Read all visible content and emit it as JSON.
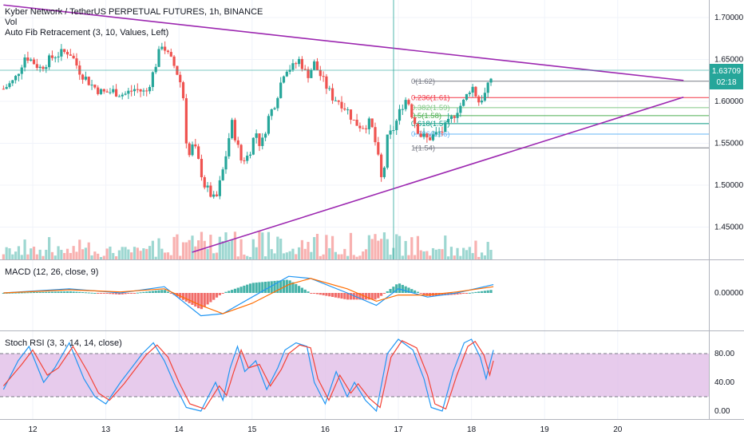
{
  "header": {
    "symbol_line": "Kyber Network / TetherUS PERPETUAL FUTURES, 1h, BINANCE",
    "volume_label": "Vol",
    "fib_label": "Auto Fib Retracement (3, 10, Values, Left)"
  },
  "macd_pane": {
    "label": "MACD (12, 26, close, 9)"
  },
  "rsi_pane": {
    "label": "Stoch RSI (3, 3, 14, 14, close)"
  },
  "price_axis": {
    "ticks": [
      "1.70000",
      "1.65000",
      "1.60000",
      "1.55000",
      "1.50000",
      "1.45000"
    ],
    "last_price": "1.63709",
    "countdown": "02:18"
  },
  "macd_axis": {
    "ticks": [
      "0.00000"
    ]
  },
  "rsi_axis": {
    "ticks": [
      "80.00",
      "40.00",
      "0.00"
    ]
  },
  "time_axis": {
    "ticks": [
      "12",
      "13",
      "14",
      "15",
      "16",
      "17",
      "18",
      "19",
      "20"
    ]
  },
  "fib_levels": [
    {
      "label": "0(1.62)",
      "price": 1.624,
      "color": "#787b86"
    },
    {
      "label": "0.236(1.61)",
      "price": 1.6045,
      "color": "#f23645"
    },
    {
      "label": "0.382(1.59)",
      "price": 1.5925,
      "color": "#81c784"
    },
    {
      "label": "0.5(1.58)",
      "price": 1.583,
      "color": "#4caf50"
    },
    {
      "label": "0.618(1.57)",
      "price": 1.5735,
      "color": "#089981"
    },
    {
      "label": "0.786(1.56)",
      "price": 1.561,
      "color": "#64b5f6"
    },
    {
      "label": "1(1.54)",
      "price": 1.5445,
      "color": "#787b86"
    }
  ],
  "colors": {
    "up": "#26a69a",
    "down": "#ef5350",
    "trendline": "#9c27b0",
    "macd_line": "#2196f3",
    "signal_line": "#ff6d00",
    "rsi_k": "#2196f3",
    "rsi_d": "#f44336",
    "rsi_band": "#e1bee7",
    "last_price_tag": "#26a69a"
  },
  "chart_data": [
    {
      "type": "candlestick",
      "title": "Kyber Network / TetherUS PERPETUAL FUTURES, 1h, BINANCE",
      "ylim": [
        1.42,
        1.72
      ],
      "x_ticks": [
        "12",
        "13",
        "14",
        "15",
        "16",
        "17",
        "18",
        "19",
        "20"
      ],
      "close_path": [
        {
          "x": 11.6,
          "y": 1.615
        },
        {
          "x": 11.75,
          "y": 1.625
        },
        {
          "x": 11.9,
          "y": 1.655
        },
        {
          "x": 12.1,
          "y": 1.64
        },
        {
          "x": 12.3,
          "y": 1.655
        },
        {
          "x": 12.5,
          "y": 1.66
        },
        {
          "x": 12.65,
          "y": 1.635
        },
        {
          "x": 12.8,
          "y": 1.62
        },
        {
          "x": 12.95,
          "y": 1.61
        },
        {
          "x": 13.1,
          "y": 1.612
        },
        {
          "x": 13.25,
          "y": 1.608
        },
        {
          "x": 13.4,
          "y": 1.615
        },
        {
          "x": 13.55,
          "y": 1.61
        },
        {
          "x": 13.65,
          "y": 1.635
        },
        {
          "x": 13.77,
          "y": 1.67
        },
        {
          "x": 13.85,
          "y": 1.655
        },
        {
          "x": 13.95,
          "y": 1.64
        },
        {
          "x": 14.05,
          "y": 1.615
        },
        {
          "x": 14.12,
          "y": 1.53
        },
        {
          "x": 14.2,
          "y": 1.55
        },
        {
          "x": 14.35,
          "y": 1.5
        },
        {
          "x": 14.5,
          "y": 1.48
        },
        {
          "x": 14.62,
          "y": 1.525
        },
        {
          "x": 14.72,
          "y": 1.575
        },
        {
          "x": 14.85,
          "y": 1.53
        },
        {
          "x": 14.95,
          "y": 1.535
        },
        {
          "x": 15.05,
          "y": 1.565
        },
        {
          "x": 15.12,
          "y": 1.545
        },
        {
          "x": 15.22,
          "y": 1.58
        },
        {
          "x": 15.32,
          "y": 1.6
        },
        {
          "x": 15.45,
          "y": 1.64
        },
        {
          "x": 15.55,
          "y": 1.64
        },
        {
          "x": 15.65,
          "y": 1.65
        },
        {
          "x": 15.75,
          "y": 1.63
        },
        {
          "x": 15.85,
          "y": 1.645
        },
        {
          "x": 16.0,
          "y": 1.62
        },
        {
          "x": 16.1,
          "y": 1.605
        },
        {
          "x": 16.2,
          "y": 1.6
        },
        {
          "x": 16.3,
          "y": 1.59
        },
        {
          "x": 16.4,
          "y": 1.575
        },
        {
          "x": 16.5,
          "y": 1.57
        },
        {
          "x": 16.62,
          "y": 1.575
        },
        {
          "x": 16.7,
          "y": 1.545
        },
        {
          "x": 16.78,
          "y": 1.5
        },
        {
          "x": 16.85,
          "y": 1.555
        },
        {
          "x": 16.95,
          "y": 1.57
        },
        {
          "x": 17.05,
          "y": 1.595
        },
        {
          "x": 17.12,
          "y": 1.605
        },
        {
          "x": 17.2,
          "y": 1.58
        },
        {
          "x": 17.3,
          "y": 1.56
        },
        {
          "x": 17.4,
          "y": 1.555
        },
        {
          "x": 17.5,
          "y": 1.56
        },
        {
          "x": 17.6,
          "y": 1.565
        },
        {
          "x": 17.7,
          "y": 1.575
        },
        {
          "x": 17.8,
          "y": 1.59
        },
        {
          "x": 17.9,
          "y": 1.6
        },
        {
          "x": 18.0,
          "y": 1.62
        },
        {
          "x": 18.1,
          "y": 1.6
        },
        {
          "x": 18.2,
          "y": 1.61
        },
        {
          "x": 18.3,
          "y": 1.637
        }
      ],
      "trendlines": [
        {
          "from": [
            11.6,
            1.715
          ],
          "to": [
            20.9,
            1.625
          ]
        },
        {
          "from": [
            14.18,
            1.42
          ],
          "to": [
            20.9,
            1.605
          ]
        }
      ],
      "last_price": 1.63709
    },
    {
      "type": "bar",
      "title": "Vol",
      "note": "volume histogram under price pane"
    },
    {
      "type": "line",
      "title": "MACD (12, 26, close, 9)",
      "series": [
        {
          "name": "MACD",
          "values": [
            {
              "x": 11.6,
              "y": 0.0
            },
            {
              "x": 12.5,
              "y": 0.004
            },
            {
              "x": 13.2,
              "y": 0.0
            },
            {
              "x": 13.8,
              "y": 0.006
            },
            {
              "x": 14.3,
              "y": -0.022
            },
            {
              "x": 14.6,
              "y": -0.02
            },
            {
              "x": 15.0,
              "y": -0.004
            },
            {
              "x": 15.5,
              "y": 0.016
            },
            {
              "x": 15.8,
              "y": 0.014
            },
            {
              "x": 16.3,
              "y": 0.0
            },
            {
              "x": 16.7,
              "y": -0.012
            },
            {
              "x": 17.0,
              "y": 0.004
            },
            {
              "x": 17.4,
              "y": -0.004
            },
            {
              "x": 17.8,
              "y": 0.0
            },
            {
              "x": 18.3,
              "y": 0.008
            }
          ]
        },
        {
          "name": "Signal",
          "values": [
            {
              "x": 11.6,
              "y": 0.0
            },
            {
              "x": 12.5,
              "y": 0.003
            },
            {
              "x": 13.2,
              "y": 0.001
            },
            {
              "x": 13.8,
              "y": 0.004
            },
            {
              "x": 14.3,
              "y": -0.012
            },
            {
              "x": 14.6,
              "y": -0.02
            },
            {
              "x": 15.0,
              "y": -0.01
            },
            {
              "x": 15.5,
              "y": 0.008
            },
            {
              "x": 15.8,
              "y": 0.014
            },
            {
              "x": 16.3,
              "y": 0.004
            },
            {
              "x": 16.7,
              "y": -0.008
            },
            {
              "x": 17.0,
              "y": -0.002
            },
            {
              "x": 17.4,
              "y": -0.002
            },
            {
              "x": 17.8,
              "y": 0.001
            },
            {
              "x": 18.3,
              "y": 0.006
            }
          ]
        }
      ],
      "y_ticks": [
        "0.00000"
      ]
    },
    {
      "type": "line",
      "title": "Stoch RSI (3, 3, 14, 14, close)",
      "ylim": [
        -10,
        110
      ],
      "y_ticks": [
        "80.00",
        "40.00",
        "0.00"
      ],
      "band": [
        20,
        80
      ],
      "series": [
        {
          "name": "K",
          "values": [
            {
              "x": 11.6,
              "y": 30
            },
            {
              "x": 11.8,
              "y": 70
            },
            {
              "x": 11.95,
              "y": 90
            },
            {
              "x": 12.15,
              "y": 40
            },
            {
              "x": 12.3,
              "y": 60
            },
            {
              "x": 12.5,
              "y": 95
            },
            {
              "x": 12.7,
              "y": 45
            },
            {
              "x": 12.85,
              "y": 20
            },
            {
              "x": 13.0,
              "y": 10
            },
            {
              "x": 13.2,
              "y": 40
            },
            {
              "x": 13.35,
              "y": 60
            },
            {
              "x": 13.5,
              "y": 80
            },
            {
              "x": 13.65,
              "y": 95
            },
            {
              "x": 13.8,
              "y": 70
            },
            {
              "x": 13.95,
              "y": 35
            },
            {
              "x": 14.1,
              "y": 5
            },
            {
              "x": 14.3,
              "y": 0
            },
            {
              "x": 14.5,
              "y": 40
            },
            {
              "x": 14.6,
              "y": 15
            },
            {
              "x": 14.7,
              "y": 60
            },
            {
              "x": 14.8,
              "y": 90
            },
            {
              "x": 14.9,
              "y": 55
            },
            {
              "x": 15.05,
              "y": 70
            },
            {
              "x": 15.2,
              "y": 30
            },
            {
              "x": 15.35,
              "y": 60
            },
            {
              "x": 15.45,
              "y": 85
            },
            {
              "x": 15.6,
              "y": 95
            },
            {
              "x": 15.75,
              "y": 90
            },
            {
              "x": 15.85,
              "y": 40
            },
            {
              "x": 16.0,
              "y": 10
            },
            {
              "x": 16.15,
              "y": 55
            },
            {
              "x": 16.3,
              "y": 20
            },
            {
              "x": 16.4,
              "y": 40
            },
            {
              "x": 16.55,
              "y": 15
            },
            {
              "x": 16.7,
              "y": 0
            },
            {
              "x": 16.85,
              "y": 80
            },
            {
              "x": 17.0,
              "y": 100
            },
            {
              "x": 17.2,
              "y": 85
            },
            {
              "x": 17.35,
              "y": 45
            },
            {
              "x": 17.45,
              "y": 5
            },
            {
              "x": 17.6,
              "y": 0
            },
            {
              "x": 17.75,
              "y": 55
            },
            {
              "x": 17.9,
              "y": 95
            },
            {
              "x": 18.0,
              "y": 100
            },
            {
              "x": 18.12,
              "y": 75
            },
            {
              "x": 18.2,
              "y": 45
            },
            {
              "x": 18.3,
              "y": 85
            }
          ]
        },
        {
          "name": "D",
          "values": [
            {
              "x": 11.6,
              "y": 35
            },
            {
              "x": 11.85,
              "y": 65
            },
            {
              "x": 12.0,
              "y": 85
            },
            {
              "x": 12.2,
              "y": 50
            },
            {
              "x": 12.35,
              "y": 60
            },
            {
              "x": 12.55,
              "y": 90
            },
            {
              "x": 12.75,
              "y": 55
            },
            {
              "x": 12.9,
              "y": 25
            },
            {
              "x": 13.05,
              "y": 15
            },
            {
              "x": 13.25,
              "y": 38
            },
            {
              "x": 13.4,
              "y": 58
            },
            {
              "x": 13.55,
              "y": 78
            },
            {
              "x": 13.7,
              "y": 92
            },
            {
              "x": 13.85,
              "y": 75
            },
            {
              "x": 14.0,
              "y": 40
            },
            {
              "x": 14.15,
              "y": 10
            },
            {
              "x": 14.35,
              "y": 3
            },
            {
              "x": 14.55,
              "y": 35
            },
            {
              "x": 14.65,
              "y": 22
            },
            {
              "x": 14.75,
              "y": 55
            },
            {
              "x": 14.85,
              "y": 85
            },
            {
              "x": 14.95,
              "y": 60
            },
            {
              "x": 15.1,
              "y": 65
            },
            {
              "x": 15.25,
              "y": 35
            },
            {
              "x": 15.4,
              "y": 58
            },
            {
              "x": 15.5,
              "y": 80
            },
            {
              "x": 15.65,
              "y": 92
            },
            {
              "x": 15.8,
              "y": 88
            },
            {
              "x": 15.9,
              "y": 45
            },
            {
              "x": 16.05,
              "y": 15
            },
            {
              "x": 16.2,
              "y": 50
            },
            {
              "x": 16.35,
              "y": 25
            },
            {
              "x": 16.45,
              "y": 38
            },
            {
              "x": 16.6,
              "y": 18
            },
            {
              "x": 16.75,
              "y": 5
            },
            {
              "x": 16.9,
              "y": 75
            },
            {
              "x": 17.05,
              "y": 98
            },
            {
              "x": 17.25,
              "y": 88
            },
            {
              "x": 17.4,
              "y": 50
            },
            {
              "x": 17.5,
              "y": 10
            },
            {
              "x": 17.65,
              "y": 3
            },
            {
              "x": 17.8,
              "y": 50
            },
            {
              "x": 17.95,
              "y": 90
            },
            {
              "x": 18.05,
              "y": 97
            },
            {
              "x": 18.17,
              "y": 78
            },
            {
              "x": 18.25,
              "y": 50
            },
            {
              "x": 18.3,
              "y": 70
            }
          ]
        }
      ]
    }
  ]
}
